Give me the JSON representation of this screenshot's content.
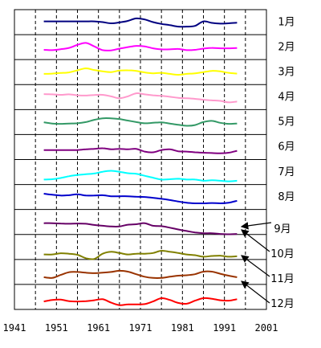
{
  "chart_data": {
    "type": "line",
    "title": "",
    "xlabel": "",
    "ylabel": "",
    "xlim": [
      1941,
      2001
    ],
    "x_ticks": [
      "1941",
      "1951",
      "1961",
      "1971",
      "1981",
      "1991",
      "2001"
    ],
    "x": [
      1948,
      1950,
      1952,
      1954,
      1956,
      1958,
      1960,
      1962,
      1964,
      1966,
      1968,
      1970,
      1972,
      1974,
      1976,
      1978,
      1980,
      1982,
      1984,
      1986,
      1988,
      1990,
      1992,
      1994
    ],
    "series": [
      {
        "name": "1月",
        "color": "#000080",
        "values": [
          0.55,
          0.55,
          0.55,
          0.55,
          0.55,
          0.55,
          0.55,
          0.5,
          0.42,
          0.48,
          0.58,
          0.75,
          0.68,
          0.5,
          0.38,
          0.3,
          0.2,
          0.2,
          0.25,
          0.55,
          0.45,
          0.4,
          0.42,
          0.46
        ]
      },
      {
        "name": "2月",
        "color": "#ff00ff",
        "values": [
          0.32,
          0.3,
          0.36,
          0.45,
          0.65,
          0.78,
          0.55,
          0.3,
          0.28,
          0.4,
          0.5,
          0.58,
          0.55,
          0.42,
          0.35,
          0.35,
          0.38,
          0.3,
          0.32,
          0.4,
          0.45,
          0.42,
          0.42,
          0.44
        ]
      },
      {
        "name": "3月",
        "color": "#ffff00",
        "values": [
          0.38,
          0.4,
          0.44,
          0.48,
          0.62,
          0.75,
          0.64,
          0.55,
          0.5,
          0.6,
          0.62,
          0.58,
          0.48,
          0.42,
          0.45,
          0.38,
          0.32,
          0.38,
          0.42,
          0.5,
          0.58,
          0.55,
          0.45,
          0.4
        ]
      },
      {
        "name": "4月",
        "color": "#ff99cc",
        "values": [
          0.7,
          0.68,
          0.65,
          0.68,
          0.62,
          0.6,
          0.64,
          0.65,
          0.55,
          0.42,
          0.55,
          0.75,
          0.68,
          0.62,
          0.58,
          0.52,
          0.45,
          0.42,
          0.38,
          0.32,
          0.28,
          0.25,
          0.15,
          0.2
        ]
      },
      {
        "name": "5月",
        "color": "#339966",
        "values": [
          0.48,
          0.4,
          0.38,
          0.4,
          0.42,
          0.5,
          0.65,
          0.75,
          0.75,
          0.7,
          0.6,
          0.5,
          0.42,
          0.45,
          0.48,
          0.4,
          0.32,
          0.25,
          0.3,
          0.5,
          0.58,
          0.45,
          0.38,
          0.4
        ]
      },
      {
        "name": "6月",
        "color": "#800080",
        "values": [
          0.3,
          0.3,
          0.3,
          0.3,
          0.3,
          0.35,
          0.38,
          0.42,
          0.35,
          0.38,
          0.35,
          0.38,
          0.2,
          0.15,
          0.3,
          0.35,
          0.22,
          0.2,
          0.15,
          0.12,
          0.1,
          0.08,
          0.12,
          0.25
        ]
      },
      {
        "name": "7月",
        "color": "#00ffff",
        "values": [
          0.0,
          0.02,
          0.1,
          0.22,
          0.3,
          0.35,
          0.4,
          0.52,
          0.58,
          0.52,
          0.42,
          0.38,
          0.25,
          0.12,
          0.0,
          0.02,
          0.05,
          0.0,
          0.0,
          -0.08,
          -0.05,
          -0.08,
          -0.12,
          -0.08
        ]
      },
      {
        "name": "8月",
        "color": "#0000cc",
        "values": [
          0.72,
          0.65,
          0.6,
          0.62,
          0.68,
          0.6,
          0.6,
          0.62,
          0.55,
          0.55,
          0.55,
          0.52,
          0.5,
          0.45,
          0.38,
          0.3,
          0.2,
          0.12,
          0.08,
          0.08,
          0.1,
          0.08,
          0.12,
          0.25
        ]
      },
      {
        "name": "9月",
        "color": "#660066",
        "values": [
          0.42,
          0.42,
          0.4,
          0.38,
          0.4,
          0.38,
          0.3,
          0.25,
          0.2,
          0.2,
          0.32,
          0.35,
          0.42,
          0.25,
          0.22,
          0.12,
          0.0,
          -0.1,
          -0.2,
          -0.25,
          -0.25,
          -0.3,
          -0.32,
          -0.3
        ]
      },
      {
        "name": "10月",
        "color": "#808000",
        "values": [
          0.0,
          0.0,
          0.08,
          0.05,
          -0.02,
          -0.25,
          -0.3,
          0.05,
          0.18,
          0.1,
          0.0,
          0.05,
          0.05,
          0.1,
          0.25,
          0.18,
          0.1,
          0.0,
          -0.05,
          -0.15,
          -0.1,
          -0.08,
          -0.15,
          -0.12
        ]
      },
      {
        "name": "11月",
        "color": "#993300",
        "values": [
          0.15,
          0.1,
          0.3,
          0.48,
          0.5,
          0.45,
          0.42,
          0.45,
          0.5,
          0.58,
          0.52,
          0.35,
          0.18,
          0.1,
          0.1,
          0.18,
          0.25,
          0.28,
          0.35,
          0.52,
          0.52,
          0.38,
          0.25,
          0.15
        ]
      },
      {
        "name": "12月",
        "color": "#ff0000",
        "values": [
          0.2,
          0.3,
          0.32,
          0.22,
          0.2,
          0.22,
          0.28,
          0.35,
          0.12,
          -0.05,
          0.0,
          0.0,
          0.02,
          0.2,
          0.42,
          0.3,
          0.1,
          0.05,
          0.25,
          0.42,
          0.38,
          0.28,
          0.25,
          0.35
        ]
      }
    ],
    "annotated_months": [
      "9月",
      "10月",
      "11月",
      "12月"
    ],
    "grid": true,
    "legend": "right"
  }
}
